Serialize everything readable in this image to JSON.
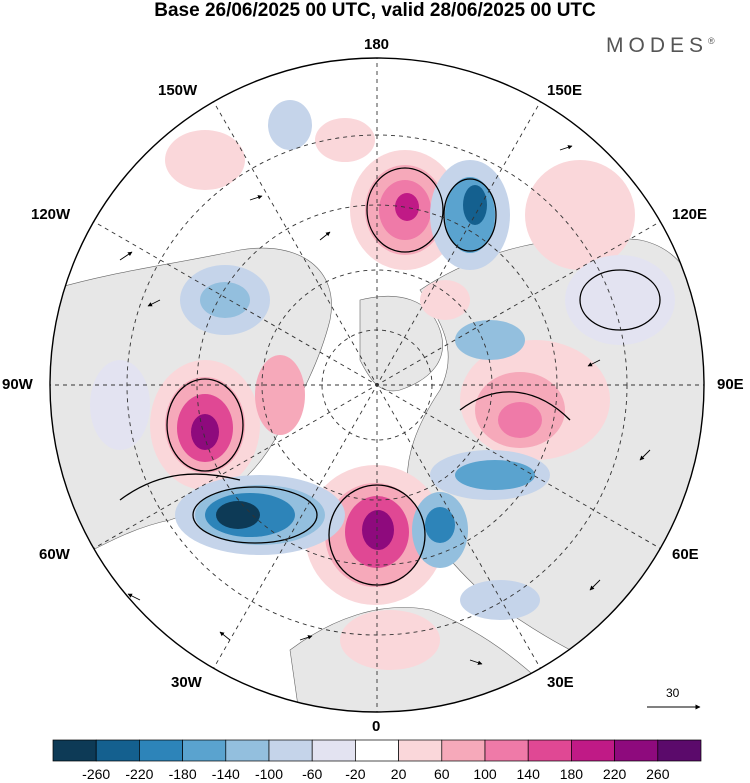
{
  "title": "Base 26/06/2025 00 UTC, valid 28/06/2025 00 UTC",
  "brand": "MODES",
  "brand_mark": "®",
  "longitude_labels": {
    "top": "180",
    "bottom": "0",
    "left": "90W",
    "right": "90E",
    "upper_left": "150W",
    "upper_right": "150E",
    "mid_upper_left": "120W",
    "mid_upper_right": "120E",
    "mid_lower_left": "60W",
    "mid_lower_right": "60E",
    "lower_left": "30W",
    "lower_right": "30E"
  },
  "reference_vector": {
    "label": "30"
  },
  "colorbar": {
    "labels": [
      "-260",
      "-220",
      "-180",
      "-140",
      "-100",
      "-60",
      "-20",
      "20",
      "60",
      "100",
      "140",
      "180",
      "220",
      "260"
    ],
    "colors": [
      "#0d3a56",
      "#14608f",
      "#2d84b9",
      "#5aa3cf",
      "#93bfde",
      "#c5d4ea",
      "#e3e3f1",
      "#ffffff",
      "#fad7da",
      "#f6a9ba",
      "#ef7aa8",
      "#e04894",
      "#c01a86",
      "#8e0a7d",
      "#5b0a6b"
    ]
  },
  "colors": {
    "land": "#e7e7e7",
    "ocean": "#ffffff",
    "grid": "#333333"
  }
}
